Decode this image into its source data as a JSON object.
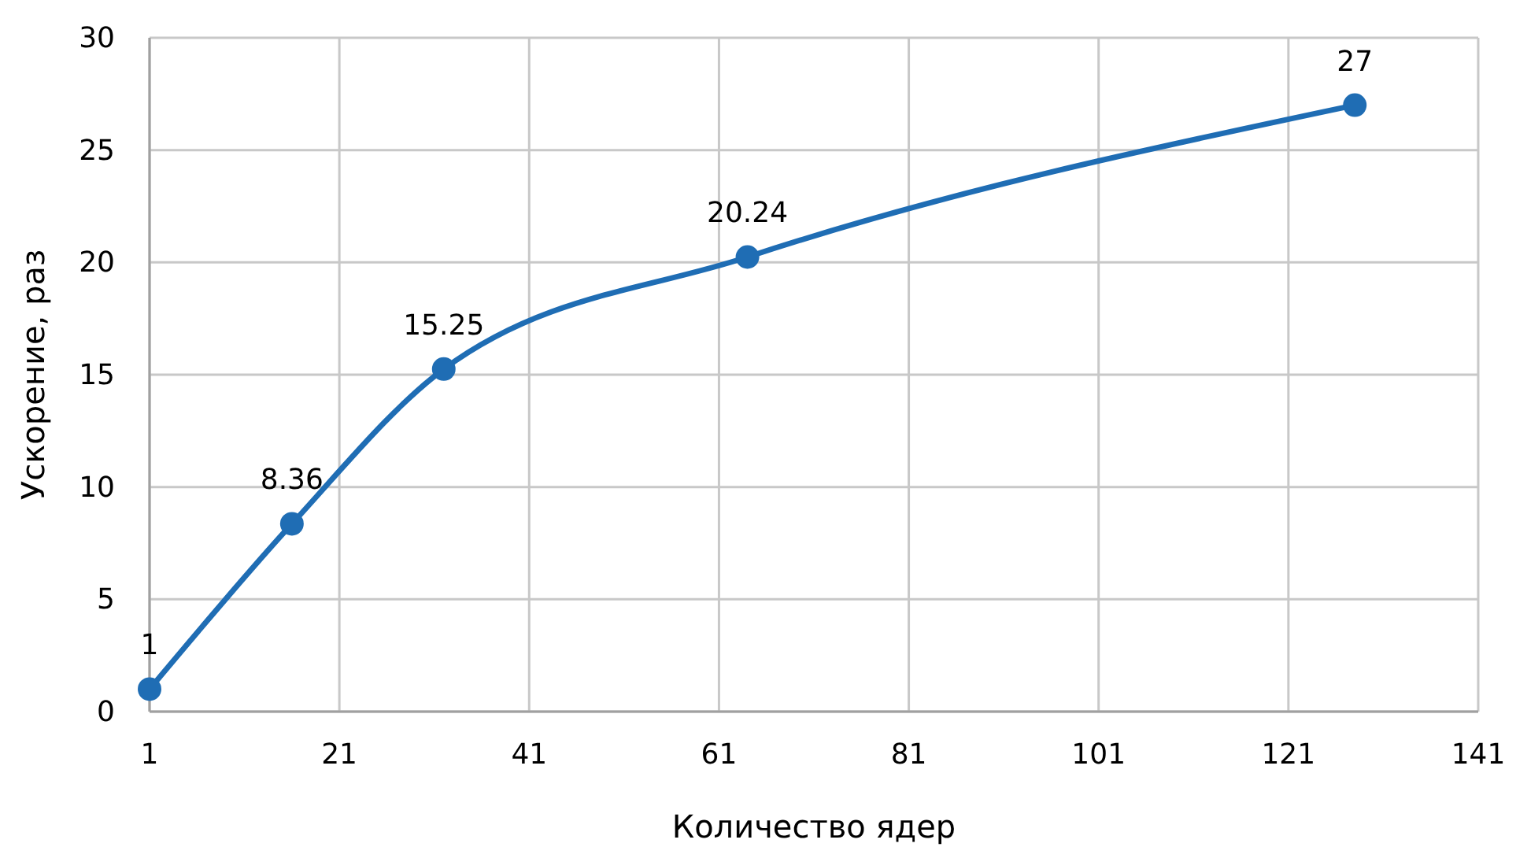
{
  "chart_data": {
    "type": "line",
    "xlabel": "Количество ядер",
    "ylabel": "Ускорение, раз",
    "x": [
      1,
      16,
      32,
      64,
      128
    ],
    "series": [
      {
        "color": "#1f6db4",
        "values": [
          1,
          8.36,
          15.25,
          20.24,
          27
        ]
      }
    ],
    "xlim": [
      1,
      141
    ],
    "xticks": [
      1,
      21,
      41,
      61,
      81,
      101,
      121,
      141
    ],
    "ylim": [
      0,
      30
    ],
    "yticks": [
      0,
      5,
      10,
      15,
      20,
      25,
      30
    ],
    "grid": true,
    "marker": "circle",
    "line_style": "solid",
    "data_labels": true
  }
}
